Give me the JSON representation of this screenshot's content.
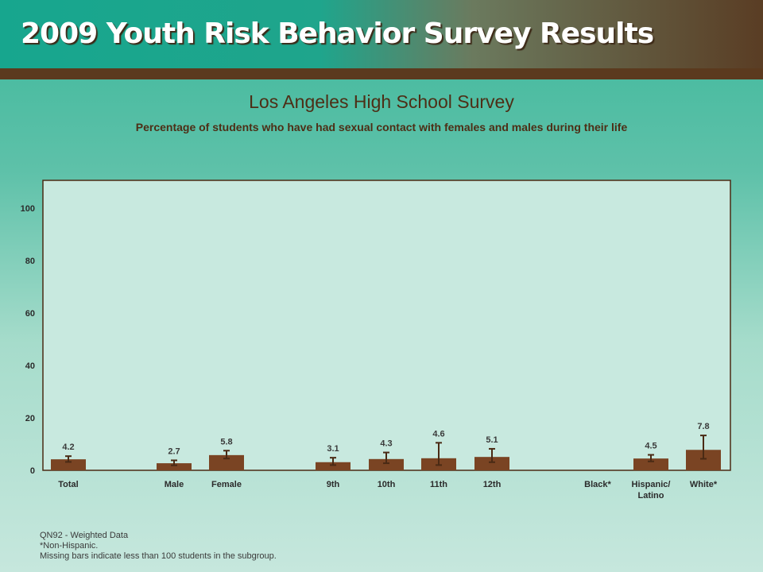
{
  "banner": {
    "title": "2009 Youth Risk Behavior Survey Results"
  },
  "header": {
    "title": "Los Angeles High School Survey",
    "subtitle": "Percentage of students who have had sexual contact with females and males during their life"
  },
  "colors": {
    "bar": "#7a4423",
    "error_bar": "#4a2a14",
    "plot_border": "#4a2a14",
    "plot_bg": "#c8e9df"
  },
  "chart_data": {
    "type": "bar",
    "ylim": [
      0,
      100
    ],
    "yticks": [
      "0",
      "20",
      "40",
      "60",
      "80",
      "100"
    ],
    "grid": false,
    "categories": [
      {
        "label": [
          "Total"
        ],
        "value": 4.2,
        "value_label": "4.2",
        "err": [
          3.2,
          5.4
        ]
      },
      {
        "label": [
          "Male"
        ],
        "value": 2.7,
        "value_label": "2.7",
        "err": [
          1.9,
          3.8
        ]
      },
      {
        "label": [
          "Female"
        ],
        "value": 5.8,
        "value_label": "5.8",
        "err": [
          4.5,
          7.5
        ]
      },
      {
        "label": [
          "9th"
        ],
        "value": 3.1,
        "value_label": "3.1",
        "err": [
          2.0,
          4.8
        ]
      },
      {
        "label": [
          "10th"
        ],
        "value": 4.3,
        "value_label": "4.3",
        "err": [
          2.7,
          6.8
        ]
      },
      {
        "label": [
          "11th"
        ],
        "value": 4.6,
        "value_label": "4.6",
        "err": [
          2.0,
          10.5
        ]
      },
      {
        "label": [
          "12th"
        ],
        "value": 5.1,
        "value_label": "5.1",
        "err": [
          3.1,
          8.2
        ]
      },
      {
        "label": [
          "Black*"
        ],
        "value": null,
        "value_label": "",
        "err": null
      },
      {
        "label": [
          "Hispanic/",
          "Latino"
        ],
        "value": 4.5,
        "value_label": "4.5",
        "err": [
          3.4,
          5.9
        ]
      },
      {
        "label": [
          "White*"
        ],
        "value": 7.8,
        "value_label": "7.8",
        "err": [
          4.4,
          13.3
        ]
      }
    ]
  },
  "footnotes": [
    "QN92 - Weighted Data",
    "*Non-Hispanic.",
    "Missing bars indicate less than 100 students in the subgroup."
  ]
}
